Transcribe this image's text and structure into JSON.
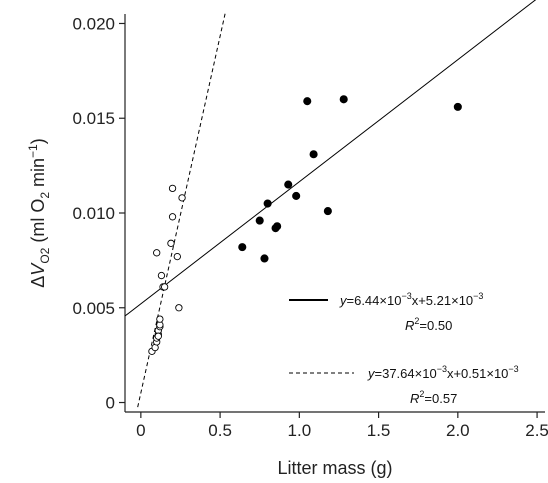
{
  "chart_data": {
    "type": "scatter",
    "xlabel": "Litter mass (g)",
    "ylabel_parts": {
      "delta": "Δ",
      "v": "V",
      "v_sub": "O2",
      "open": " (ml O",
      "o2_sub": "2",
      "unit": " min",
      "exp": "−1",
      "close": ")"
    },
    "xlim": [
      -0.1,
      2.55
    ],
    "ylim": [
      -0.0005,
      0.0205
    ],
    "x_ticks": [
      0,
      0.5,
      1.0,
      1.5,
      2.0,
      2.5
    ],
    "x_tick_labels": [
      "0",
      "0.5",
      "1.0",
      "1.5",
      "2.0",
      "2.5"
    ],
    "y_ticks": [
      0,
      0.005,
      0.01,
      0.015,
      0.02
    ],
    "y_tick_labels": [
      "0",
      "0.005",
      "0.010",
      "0.015",
      "0.020"
    ],
    "series": [
      {
        "marker": "filled",
        "x": [
          0.64,
          0.75,
          0.78,
          0.8,
          0.85,
          0.86,
          0.93,
          0.98,
          1.05,
          1.09,
          1.18,
          1.28,
          2.0
        ],
        "y": [
          0.0082,
          0.0096,
          0.0076,
          0.0105,
          0.0092,
          0.0093,
          0.0115,
          0.0109,
          0.0159,
          0.0131,
          0.0101,
          0.016,
          0.0156
        ]
      },
      {
        "marker": "open",
        "x": [
          0.07,
          0.09,
          0.1,
          0.1,
          0.11,
          0.11,
          0.12,
          0.12,
          0.12,
          0.13,
          0.14,
          0.15,
          0.19,
          0.2,
          0.2,
          0.23,
          0.24,
          0.26,
          0.1,
          0.11
        ],
        "y": [
          0.0027,
          0.0029,
          0.0032,
          0.0034,
          0.0036,
          0.0038,
          0.004,
          0.0041,
          0.0044,
          0.0067,
          0.0061,
          0.0061,
          0.0084,
          0.0098,
          0.0113,
          0.0077,
          0.005,
          0.0108,
          0.0079,
          0.0035
        ]
      }
    ],
    "fit_lines": [
      {
        "style": "solid",
        "slope": 0.00644,
        "intercept": 0.00521,
        "x_range": [
          -0.1,
          2.55
        ],
        "equation": {
          "y": "y",
          "mid": "=6.44×10",
          "exp1": "−3",
          "mid2": "x+5.21×10",
          "exp2": "−3"
        },
        "r2": {
          "r": "R",
          "sup": "2",
          "val": "=0.50"
        }
      },
      {
        "style": "dashed",
        "slope": 0.03764,
        "intercept": 0.00051,
        "x_range": [
          -0.02,
          0.535
        ],
        "equation": {
          "y": "y",
          "mid": "=37.64×10",
          "exp1": "−3",
          "mid2": "x+0.51×10",
          "exp2": "−3"
        },
        "r2": {
          "r": "R",
          "sup": "2",
          "val": "=0.57"
        }
      }
    ]
  }
}
